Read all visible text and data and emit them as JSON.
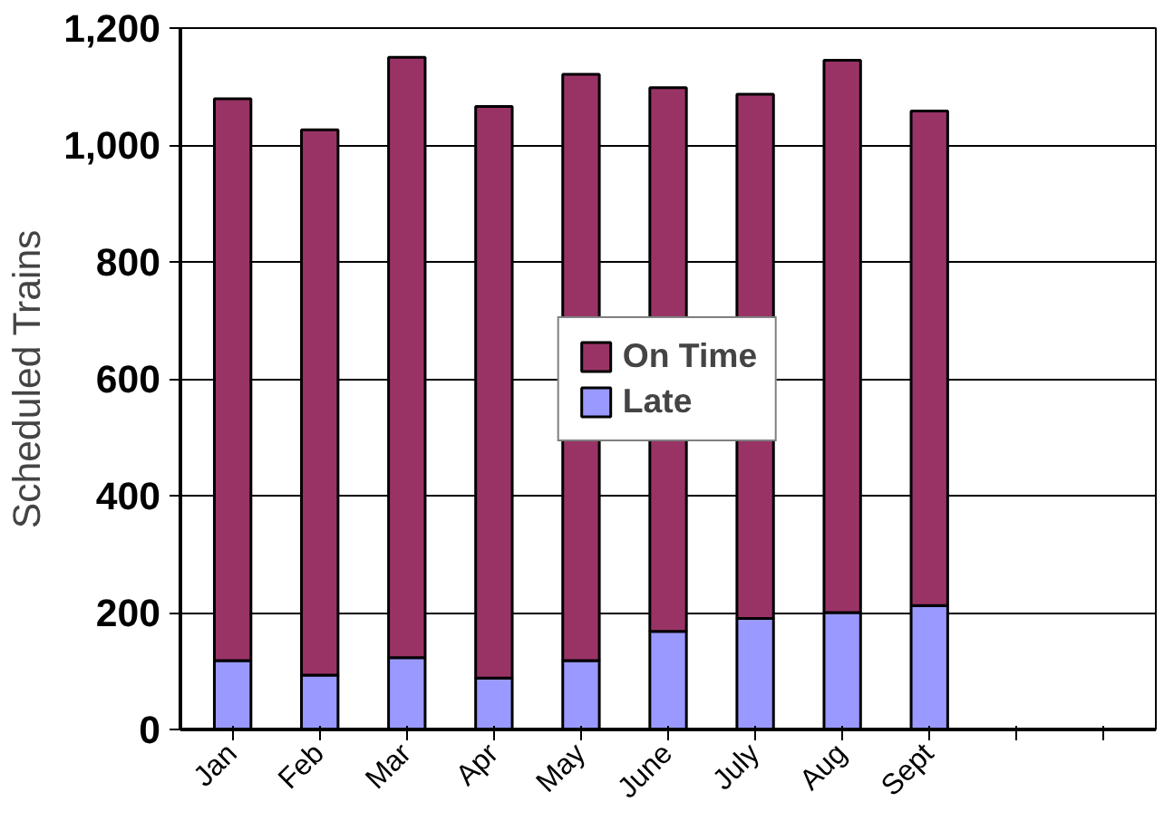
{
  "chart_data": {
    "type": "bar",
    "stacked": true,
    "ylabel": "Scheduled Trains",
    "categories": [
      "Jan",
      "Feb",
      "Mar",
      "Apr",
      "May",
      "June",
      "July",
      "Aug",
      "Sept",
      null,
      null
    ],
    "series": [
      {
        "name": "Late",
        "color": "#9999ff",
        "values": [
          118,
          93,
          123,
          88,
          118,
          168,
          190,
          200,
          212,
          null,
          null
        ]
      },
      {
        "name": "On Time",
        "color": "#993366",
        "values": [
          961,
          933,
          1027,
          978,
          1003,
          930,
          897,
          945,
          846,
          null,
          null
        ]
      }
    ],
    "ylim": [
      0,
      1200
    ],
    "yticks": [
      0,
      200,
      400,
      600,
      800,
      {
        "value": 1000,
        "label": "1,000"
      },
      {
        "value": 1200,
        "label": "1,200"
      }
    ],
    "grid": "y",
    "legend": "center"
  }
}
